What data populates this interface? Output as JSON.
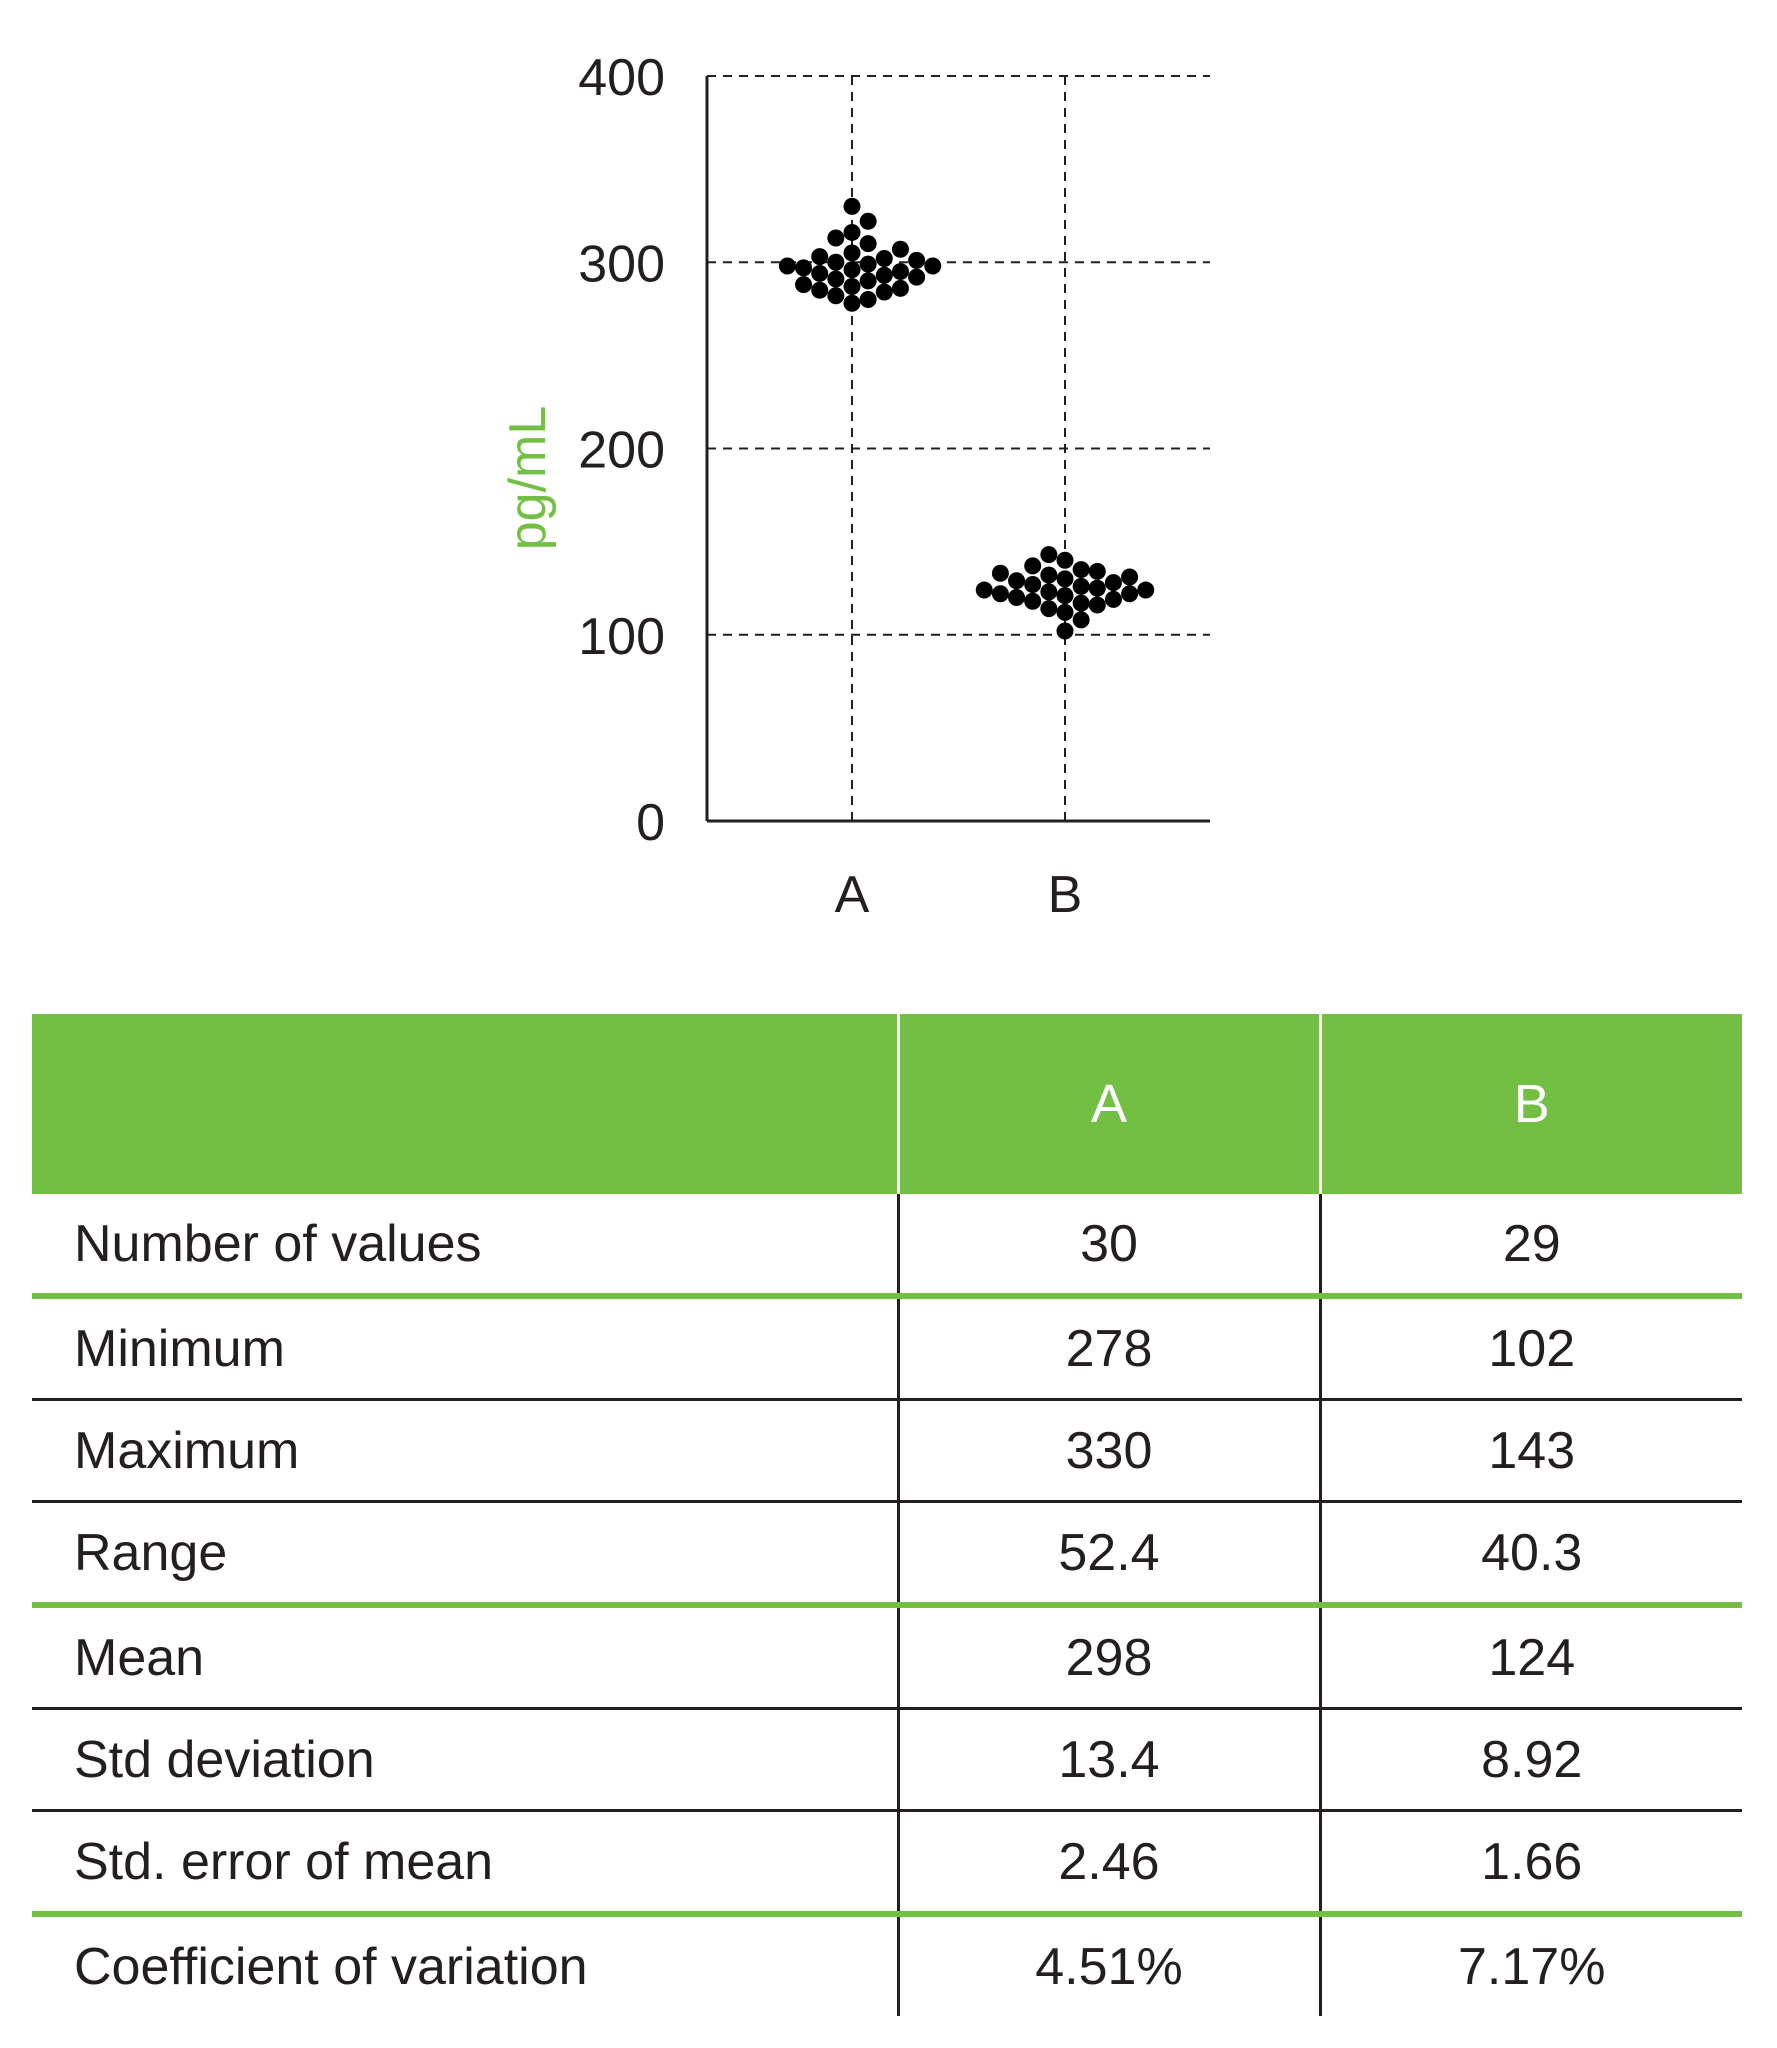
{
  "chart_data": {
    "type": "scatter",
    "title": "",
    "xlabel": "",
    "ylabel": "pg/mL",
    "ylabel_color": "#72bf44",
    "ylim": [
      0,
      400
    ],
    "yticks": [
      "0",
      "100",
      "200",
      "300",
      "400"
    ],
    "categories": [
      "A",
      "B"
    ],
    "grid": true,
    "grid_style": "dashed",
    "marker_color": "#000000",
    "series": [
      {
        "values": [
          278,
          280,
          282,
          284,
          285,
          286,
          287,
          288,
          290,
          291,
          292,
          293,
          294,
          295,
          296,
          297,
          298,
          298,
          299,
          300,
          301,
          302,
          303,
          305,
          307,
          310,
          313,
          316,
          322,
          330
        ]
      },
      {
        "values": [
          102,
          108,
          112,
          114,
          116,
          117,
          118,
          119,
          120,
          121,
          122,
          122,
          123,
          124,
          124,
          125,
          126,
          127,
          128,
          129,
          130,
          131,
          132,
          133,
          134,
          135,
          137,
          140,
          143
        ]
      }
    ]
  },
  "table": {
    "header": [
      "",
      "A",
      "B"
    ],
    "header_color": "#72bf44",
    "rows": [
      {
        "label": "Number of values",
        "a": "30",
        "b": "29"
      },
      {
        "label": "Minimum",
        "a": "278",
        "b": "102"
      },
      {
        "label": "Maximum",
        "a": "330",
        "b": "143"
      },
      {
        "label": "Range",
        "a": "52.4",
        "b": "40.3"
      },
      {
        "label": "Mean",
        "a": "298",
        "b": "124"
      },
      {
        "label": "Std deviation",
        "a": "13.4",
        "b": "8.92"
      },
      {
        "label": "Std. error of mean",
        "a": "2.46",
        "b": "1.66"
      },
      {
        "label": "Coefficient of variation",
        "a": "4.51%",
        "b": "7.17%"
      }
    ]
  }
}
